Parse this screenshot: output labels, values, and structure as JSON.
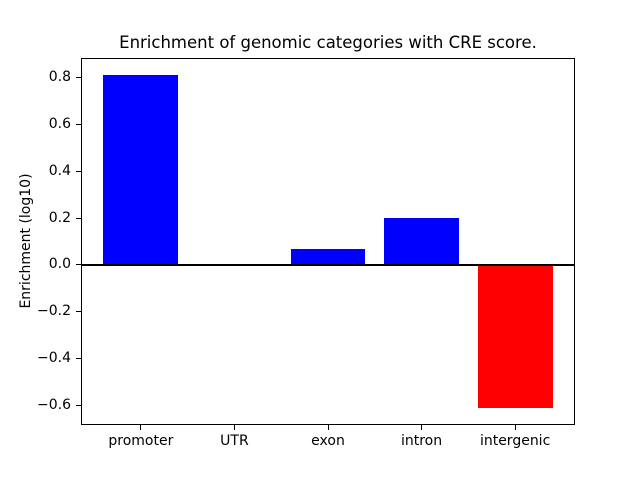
{
  "chart_data": {
    "type": "bar",
    "title": "Enrichment of genomic categories with CRE score.",
    "xlabel": "",
    "ylabel": "Enrichment (log10)",
    "categories": [
      "promoter",
      "UTR",
      "exon",
      "intron",
      "intergenic"
    ],
    "values": [
      0.81,
      0.0,
      0.07,
      0.2,
      -0.61
    ],
    "bar_colors": [
      "#0000ff",
      "#0000ff",
      "#0000ff",
      "#0000ff",
      "#ff0000"
    ],
    "positive_color": "#0000ff",
    "negative_color": "#ff0000",
    "bar_width": 0.8,
    "yticks": [
      0.8,
      0.6,
      0.4,
      0.2,
      0.0,
      -0.2,
      -0.4,
      -0.6
    ],
    "ytick_labels": [
      "0.8",
      "0.6",
      "0.4",
      "0.2",
      "0.0",
      "−0.2",
      "−0.4",
      "−0.6"
    ],
    "ylim": [
      -0.681,
      0.881
    ],
    "xlim": [
      -0.64,
      4.64
    ],
    "zero_line": true,
    "grid": false,
    "legend": null
  }
}
